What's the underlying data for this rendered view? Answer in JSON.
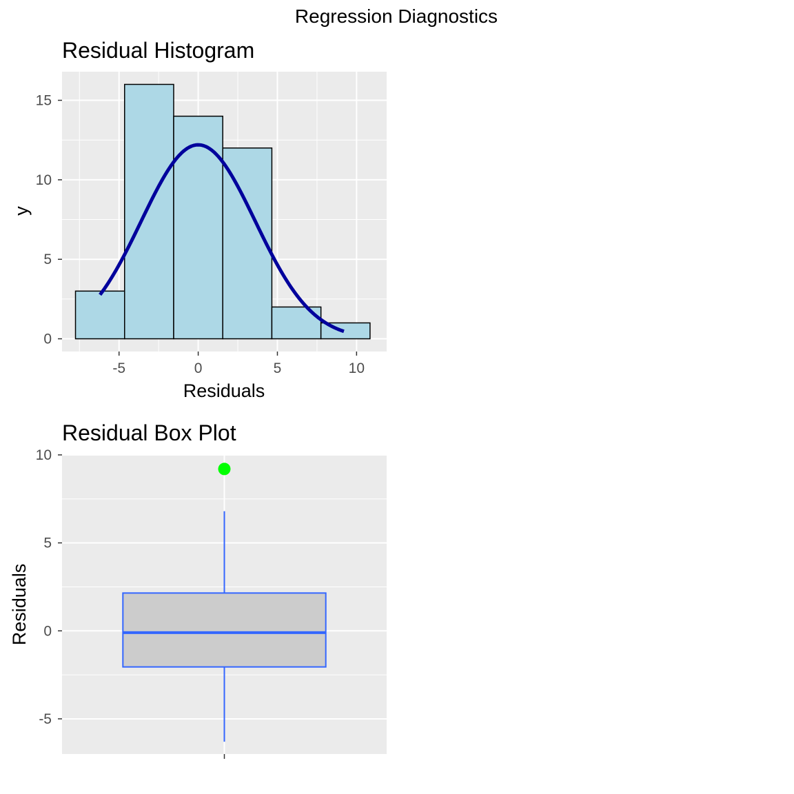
{
  "figure": {
    "title": "Regression Diagnostics"
  },
  "chart_data": [
    {
      "type": "bar",
      "title": "Residual Histogram",
      "xlabel": "Residuals",
      "ylabel": "y",
      "xlim": [
        -8.6,
        11.9
      ],
      "ylim": [
        -0.8,
        16.8
      ],
      "xticks": [
        -5,
        0,
        5,
        10
      ],
      "yticks": [
        0,
        5,
        10,
        15
      ],
      "grid": true,
      "bins": [
        {
          "x0": -7.75,
          "x1": -4.65,
          "count": 3
        },
        {
          "x0": -4.65,
          "x1": -1.55,
          "count": 16
        },
        {
          "x0": -1.55,
          "x1": 1.55,
          "count": 14
        },
        {
          "x0": 1.55,
          "x1": 4.65,
          "count": 12
        },
        {
          "x0": 4.65,
          "x1": 7.75,
          "count": 2
        },
        {
          "x0": 7.75,
          "x1": 10.85,
          "count": 1
        }
      ],
      "bar_fill": "#add8e6",
      "bar_outline": "#000000",
      "density_curve": {
        "color": "#00009c",
        "mean": 0.0,
        "sd": 3.6,
        "peak": 12.2,
        "x_range": [
          -6.2,
          9.2
        ]
      }
    },
    {
      "type": "boxplot",
      "title": "Residual Box Plot",
      "xlabel": "",
      "ylabel": "Residuals",
      "ylim": [
        -7.0,
        10.0
      ],
      "yticks": [
        -5,
        0,
        5,
        10
      ],
      "grid": true,
      "stats": {
        "min": -6.3,
        "q1": -2.05,
        "median": -0.1,
        "q3": 2.15,
        "max": 6.8
      },
      "outliers": [
        9.2
      ],
      "box_fill": "#cccccc",
      "box_color": "#3366ff",
      "outlier_color": "#00ff00"
    }
  ]
}
